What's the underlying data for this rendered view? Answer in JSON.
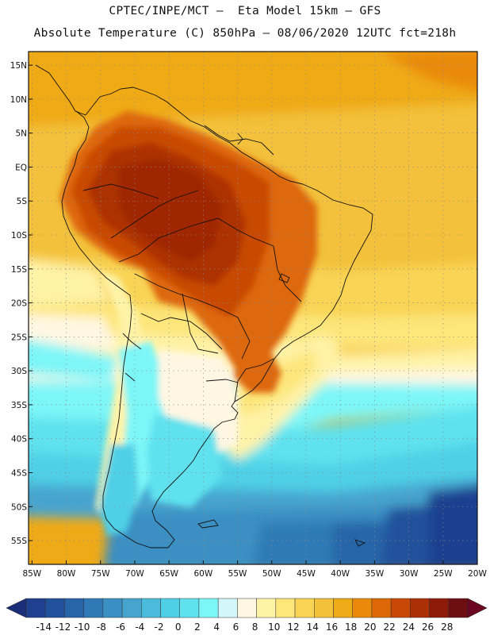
{
  "header": {
    "line1": "CPTEC/INPE/MCT –  Eta Model 15km – GFS",
    "line2": "Absolute Temperature (C) 850hPa – 08/06/2020 12UTC fct=218h"
  },
  "map": {
    "lat_labels": [
      "15N",
      "10N",
      "5N",
      "EQ",
      "5S",
      "10S",
      "15S",
      "20S",
      "25S",
      "30S",
      "35S",
      "40S",
      "45S",
      "50S",
      "55S"
    ],
    "lon_labels": [
      "85W",
      "80W",
      "75W",
      "70W",
      "65W",
      "60W",
      "55W",
      "50W",
      "45W",
      "40W",
      "35W",
      "30W",
      "25W",
      "20W"
    ],
    "lat_values": [
      15,
      10,
      5,
      0,
      -5,
      -10,
      -15,
      -20,
      -25,
      -30,
      -35,
      -40,
      -45,
      -50,
      -55
    ],
    "lon_values": [
      -85,
      -80,
      -75,
      -70,
      -65,
      -60,
      -55,
      -50,
      -45,
      -40,
      -35,
      -30,
      -25,
      -20
    ],
    "extent": {
      "lon_min": -85.5,
      "lon_max": -20,
      "lat_min": -58.5,
      "lat_max": 17
    }
  },
  "colorbar": {
    "labels": [
      "-14",
      "-12",
      "-10",
      "-8",
      "-6",
      "-4",
      "-2",
      "0",
      "2",
      "4",
      "6",
      "8",
      "10",
      "12",
      "14",
      "16",
      "18",
      "20",
      "22",
      "24",
      "26",
      "28"
    ],
    "colors": [
      "#1f3f8f",
      "#22519b",
      "#2765a8",
      "#2f7ab6",
      "#3a8fc3",
      "#46a4cf",
      "#4cbcdc",
      "#4fd0e6",
      "#5fe2ee",
      "#7df6f8",
      "#d2f6fa",
      "#fff7e2",
      "#fff3a8",
      "#fde67a",
      "#f9d455",
      "#f3c13a",
      "#efaa18",
      "#e98a0c",
      "#de6708",
      "#c94806",
      "#ac3006",
      "#8e1a0a",
      "#6d0e12"
    ],
    "under_color": "#1a2f78",
    "over_color": "#6b0622"
  }
}
